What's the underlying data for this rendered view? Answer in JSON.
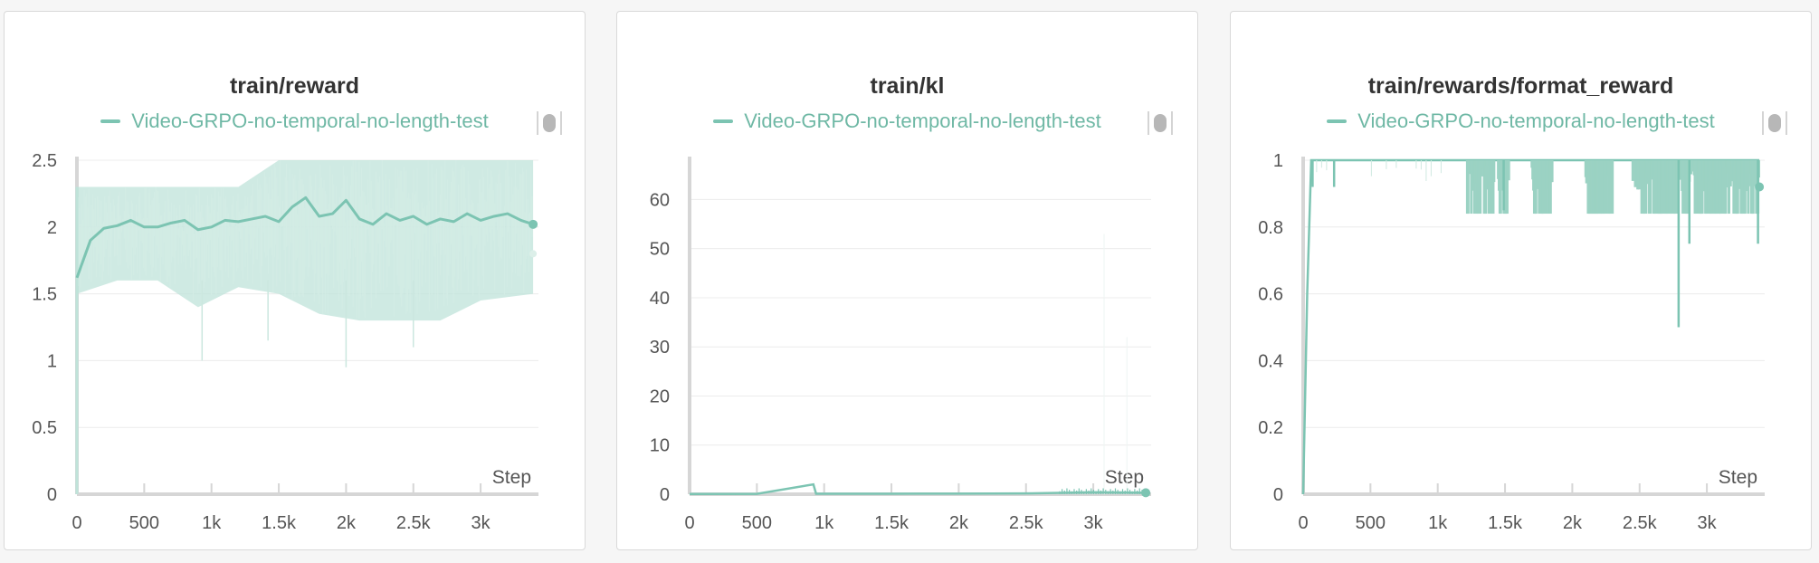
{
  "colors": {
    "series": "#7cc4b2",
    "series_light": "#bfe3d9",
    "grid": "#ececec",
    "axis": "#d6d6d6"
  },
  "icons": {
    "legend_toggle": "toggle-icon"
  },
  "chart_data": [
    {
      "type": "line",
      "title": "train/reward",
      "xlabel": "Step",
      "legend": [
        "Video-GRPO-no-temporal-no-length-test"
      ],
      "legend_placement": "top",
      "xlim": [
        0,
        3400
      ],
      "ylim": [
        0,
        2.5
      ],
      "x_ticks": [
        0,
        500,
        1000,
        1500,
        2000,
        2500,
        3000
      ],
      "x_tick_labels": [
        "0",
        "500",
        "1k",
        "1.5k",
        "2k",
        "2.5k",
        "3k"
      ],
      "y_ticks": [
        0,
        0.5,
        1,
        1.5,
        2,
        2.5
      ],
      "y_tick_labels": [
        "0",
        "0.5",
        "1",
        "1.5",
        "2",
        "2.5"
      ],
      "grid": true,
      "series": [
        {
          "name": "Video-GRPO-no-temporal-no-length-test",
          "smoothed": {
            "x": [
              0,
              100,
              200,
              300,
              400,
              500,
              600,
              700,
              800,
              900,
              1000,
              1100,
              1200,
              1300,
              1400,
              1500,
              1600,
              1700,
              1800,
              1900,
              2000,
              2100,
              2200,
              2300,
              2400,
              2500,
              2600,
              2700,
              2800,
              2900,
              3000,
              3100,
              3200,
              3300,
              3390
            ],
            "y": [
              1.62,
              1.9,
              1.99,
              2.01,
              2.05,
              2.0,
              2.0,
              2.03,
              2.05,
              1.98,
              2.0,
              2.05,
              2.04,
              2.06,
              2.08,
              2.04,
              2.15,
              2.22,
              2.08,
              2.1,
              2.2,
              2.06,
              2.02,
              2.1,
              2.05,
              2.08,
              2.02,
              2.06,
              2.04,
              2.1,
              2.05,
              2.08,
              2.1,
              2.05,
              2.02
            ]
          },
          "raw_band": {
            "x": [
              0,
              300,
              600,
              900,
              1200,
              1500,
              1800,
              2100,
              2400,
              2700,
              3000,
              3390
            ],
            "low": [
              1.5,
              1.6,
              1.6,
              1.4,
              1.55,
              1.5,
              1.35,
              1.3,
              1.3,
              1.3,
              1.45,
              1.5
            ],
            "high": [
              2.3,
              2.3,
              2.3,
              2.3,
              2.3,
              2.5,
              2.5,
              2.5,
              2.5,
              2.5,
              2.5,
              2.5
            ]
          },
          "raw_dips": [
            {
              "x": 930,
              "y": 1.0
            },
            {
              "x": 2000,
              "y": 0.95
            },
            {
              "x": 1420,
              "y": 1.15
            },
            {
              "x": 2500,
              "y": 1.1
            }
          ],
          "last_value": 2.02,
          "last_raw": 1.8
        }
      ]
    },
    {
      "type": "line",
      "title": "train/kl",
      "xlabel": "Step",
      "legend": [
        "Video-GRPO-no-temporal-no-length-test"
      ],
      "legend_placement": "top",
      "xlim": [
        0,
        3400
      ],
      "ylim": [
        0,
        68
      ],
      "x_ticks": [
        0,
        500,
        1000,
        1500,
        2000,
        2500,
        3000
      ],
      "x_tick_labels": [
        "0",
        "500",
        "1k",
        "1.5k",
        "2k",
        "2.5k",
        "3k"
      ],
      "y_ticks": [
        0,
        10,
        20,
        30,
        40,
        50,
        60
      ],
      "y_tick_labels": [
        "0",
        "10",
        "20",
        "30",
        "40",
        "50",
        "60"
      ],
      "grid": true,
      "series": [
        {
          "name": "Video-GRPO-no-temporal-no-length-test",
          "values": {
            "x": [
              0,
              500,
              920,
              940,
              1000,
              1500,
              2000,
              2500,
              2800,
              3000,
              3390
            ],
            "y": [
              0.05,
              0.08,
              2.0,
              0.1,
              0.1,
              0.1,
              0.12,
              0.15,
              0.3,
              0.4,
              0.3
            ]
          },
          "faint_spikes": [
            {
              "x": 3080,
              "y": 53
            },
            {
              "x": 3250,
              "y": 32
            }
          ],
          "last_value": 0.3
        }
      ]
    },
    {
      "type": "line",
      "title": "train/rewards/format_reward",
      "xlabel": "Step",
      "legend": [
        "Video-GRPO-no-temporal-no-length-test"
      ],
      "legend_placement": "top",
      "xlim": [
        0,
        3400
      ],
      "ylim": [
        0,
        1
      ],
      "x_ticks": [
        0,
        500,
        1000,
        1500,
        2000,
        2500,
        3000
      ],
      "x_tick_labels": [
        "0",
        "500",
        "1k",
        "1.5k",
        "2k",
        "2.5k",
        "3k"
      ],
      "y_ticks": [
        0,
        0.2,
        0.4,
        0.6,
        0.8,
        1
      ],
      "y_tick_labels": [
        "0",
        "0.2",
        "0.4",
        "0.6",
        "0.8",
        "1"
      ],
      "grid": true,
      "series": [
        {
          "name": "Video-GRPO-no-temporal-no-length-test",
          "values": {
            "x": [
              0,
              30,
              60,
              3390
            ],
            "y": [
              0,
              0.6,
              1,
              1
            ]
          },
          "dense_dips": [
            {
              "x0": 1220,
              "x1": 1420,
              "y": 0.84
            },
            {
              "x0": 1450,
              "x1": 1530,
              "y": 0.84
            },
            {
              "x0": 1700,
              "x1": 1850,
              "y": 0.84
            },
            {
              "x0": 2100,
              "x1": 2300,
              "y": 0.84
            },
            {
              "x0": 2450,
              "x1": 3390,
              "y": 0.84
            }
          ],
          "deep_dips": [
            {
              "x": 70,
              "y": 0.92
            },
            {
              "x": 230,
              "y": 0.92
            },
            {
              "x": 2790,
              "y": 0.5
            },
            {
              "x": 2870,
              "y": 0.75
            },
            {
              "x": 3380,
              "y": 0.75
            },
            {
              "x": 1490,
              "y": 0.85
            }
          ],
          "last_value": 0.92
        }
      ]
    }
  ]
}
